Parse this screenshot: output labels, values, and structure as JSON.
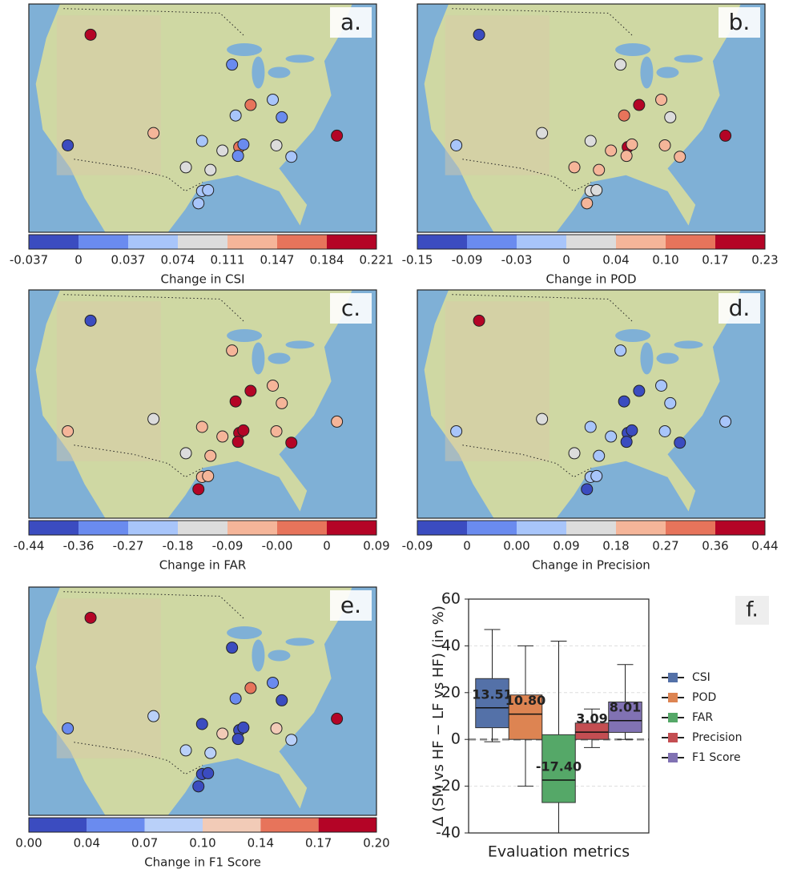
{
  "stations": {
    "lon": [
      -114.7,
      -118.5,
      -104.2,
      -91.1,
      -88.0,
      -84.3,
      -82.8,
      -90.5,
      -73.6,
      -96.1,
      -92.7,
      -89.9,
      -89.2,
      -90.1,
      -83.7,
      -81.2,
      -98.8,
      -94.7,
      -96.1,
      -95.1,
      -96.7
    ],
    "lat": [
      46.5,
      33.9,
      35.3,
      43.1,
      38.5,
      39.1,
      37.1,
      37.3,
      35.0,
      34.4,
      33.3,
      33.7,
      34.0,
      32.7,
      33.9,
      32.6,
      31.4,
      31.1,
      28.7,
      28.8,
      27.3
    ]
  },
  "chart_data": [
    {
      "type": "map",
      "label": "a.",
      "xlabel": "Change in CSI",
      "xlim": [
        -125,
        -67
      ],
      "ylim": [
        24,
        50
      ],
      "colorbar": {
        "colors": [
          "#3b4cc0",
          "#6a8bef",
          "#a8c5fa",
          "#dcdcdc",
          "#f5b599",
          "#e7745b",
          "#b40426"
        ],
        "ticks": [
          "-0.037",
          "0",
          "0.037",
          "0.074",
          "0.111",
          "0.147",
          "0.184",
          "0.221"
        ]
      },
      "point_colors": [
        "#b40426",
        "#3b4cc0",
        "#f5b599",
        "#6a8bef",
        "#e7745b",
        "#a8c5fa",
        "#6a8bef",
        "#a8c5fa",
        "#b40426",
        "#a8c5fa",
        "#dcdcdc",
        "#e7745b",
        "#6a8bef",
        "#6a8bef",
        "#dcdcdc",
        "#a8c5fa",
        "#dcdcdc",
        "#dcdcdc",
        "#a8c5fa",
        "#a8c5fa",
        "#a8c5fa"
      ]
    },
    {
      "type": "map",
      "label": "b.",
      "xlabel": "Change in POD",
      "xlim": [
        -125,
        -67
      ],
      "ylim": [
        24,
        50
      ],
      "colorbar": {
        "colors": [
          "#3b4cc0",
          "#6a8bef",
          "#a8c5fa",
          "#dcdcdc",
          "#f5b599",
          "#e7745b",
          "#b40426"
        ],
        "ticks": [
          "-0.15",
          "-0.09",
          "-0.03",
          "0",
          "0.04",
          "0.10",
          "0.17",
          "0.23"
        ]
      },
      "point_colors": [
        "#3b4cc0",
        "#a8c5fa",
        "#dcdcdc",
        "#dcdcdc",
        "#b40426",
        "#f5b599",
        "#dcdcdc",
        "#e7745b",
        "#b40426",
        "#dcdcdc",
        "#f5b599",
        "#b40426",
        "#f5b599",
        "#f5b599",
        "#f5b599",
        "#f5b599",
        "#f5b599",
        "#f5b599",
        "#dcdcdc",
        "#dcdcdc",
        "#f5b599"
      ]
    },
    {
      "type": "map",
      "label": "c.",
      "xlabel": "Change in FAR",
      "xlim": [
        -125,
        -67
      ],
      "ylim": [
        24,
        50
      ],
      "colorbar": {
        "colors": [
          "#3b4cc0",
          "#6a8bef",
          "#a8c5fa",
          "#dcdcdc",
          "#f5b599",
          "#e7745b",
          "#b40426"
        ],
        "ticks": [
          "-0.44",
          "-0.36",
          "-0.27",
          "-0.18",
          "-0.09",
          "-0.00",
          "0",
          "0.09"
        ]
      },
      "point_colors": [
        "#3b4cc0",
        "#f5b599",
        "#dcdcdc",
        "#f5b599",
        "#b40426",
        "#f5b599",
        "#f5b599",
        "#b40426",
        "#f5b599",
        "#f5b599",
        "#f5b599",
        "#b40426",
        "#b40426",
        "#b40426",
        "#f5b599",
        "#b40426",
        "#dcdcdc",
        "#f5b599",
        "#f5b599",
        "#f5b599",
        "#b40426"
      ]
    },
    {
      "type": "map",
      "label": "d.",
      "xlabel": "Change in Precision",
      "xlim": [
        -125,
        -67
      ],
      "ylim": [
        24,
        50
      ],
      "colorbar": {
        "colors": [
          "#3b4cc0",
          "#6a8bef",
          "#a8c5fa",
          "#dcdcdc",
          "#f5b599",
          "#e7745b",
          "#b40426"
        ],
        "ticks": [
          "-0.09",
          "0",
          "0.00",
          "0.09",
          "0.18",
          "0.27",
          "0.36",
          "0.44"
        ]
      },
      "point_colors": [
        "#b40426",
        "#a8c5fa",
        "#dcdcdc",
        "#a8c5fa",
        "#3b4cc0",
        "#a8c5fa",
        "#a8c5fa",
        "#3b4cc0",
        "#a8c5fa",
        "#a8c5fa",
        "#a8c5fa",
        "#3b4cc0",
        "#3b4cc0",
        "#3b4cc0",
        "#a8c5fa",
        "#3b4cc0",
        "#dcdcdc",
        "#a8c5fa",
        "#a8c5fa",
        "#a8c5fa",
        "#3b4cc0"
      ]
    },
    {
      "type": "map",
      "label": "e.",
      "xlabel": "Change in F1 Score",
      "xlim": [
        -125,
        -67
      ],
      "ylim": [
        24,
        50
      ],
      "colorbar": {
        "colors": [
          "#3b4cc0",
          "#6a8bef",
          "#b9d0f9",
          "#f2cbb7",
          "#e7745b",
          "#b40426"
        ],
        "ticks": [
          "0.00",
          "0.04",
          "0.07",
          "0.10",
          "0.14",
          "0.17",
          "0.20"
        ]
      },
      "point_colors": [
        "#b40426",
        "#6a8bef",
        "#b9d0f9",
        "#3b4cc0",
        "#e7745b",
        "#6a8bef",
        "#3b4cc0",
        "#6a8bef",
        "#b40426",
        "#3b4cc0",
        "#f2cbb7",
        "#3b4cc0",
        "#3b4cc0",
        "#3b4cc0",
        "#f2cbb7",
        "#b9d0f9",
        "#b9d0f9",
        "#b9d0f9",
        "#3b4cc0",
        "#3b4cc0",
        "#3b4cc0"
      ]
    },
    {
      "type": "box",
      "label": "f.",
      "ylabel": "Δ (SM vs HF − LF vs HF) (in %)",
      "xlabel": "Evaluation metrics",
      "ylim": [
        -40,
        60
      ],
      "yticks": [
        -40,
        -20,
        0,
        20,
        40,
        60
      ],
      "grid": true,
      "zero_line": true,
      "series": [
        {
          "name": "CSI",
          "color": "#5471a8",
          "min": -1,
          "q1": 5,
          "median": 13.51,
          "median_label": "13.51",
          "q3": 26,
          "max": 47
        },
        {
          "name": "POD",
          "color": "#dd8452",
          "min": -20,
          "q1": 0,
          "median": 10.8,
          "median_label": "10.80",
          "q3": 19,
          "max": 40
        },
        {
          "name": "FAR",
          "color": "#55a868",
          "min": -40,
          "q1": -27,
          "median": -17.4,
          "median_label": "-17.40",
          "q3": 2,
          "max": 42
        },
        {
          "name": "Precision",
          "color": "#c44e52",
          "min": -3.5,
          "q1": 0,
          "median": 3.09,
          "median_label": "3.09",
          "q3": 7,
          "max": 13
        },
        {
          "name": "F1 Score",
          "color": "#8172b3",
          "min": 0,
          "q1": 3,
          "median": 8.01,
          "median_label": "8.01",
          "q3": 16,
          "max": 32
        }
      ]
    }
  ]
}
